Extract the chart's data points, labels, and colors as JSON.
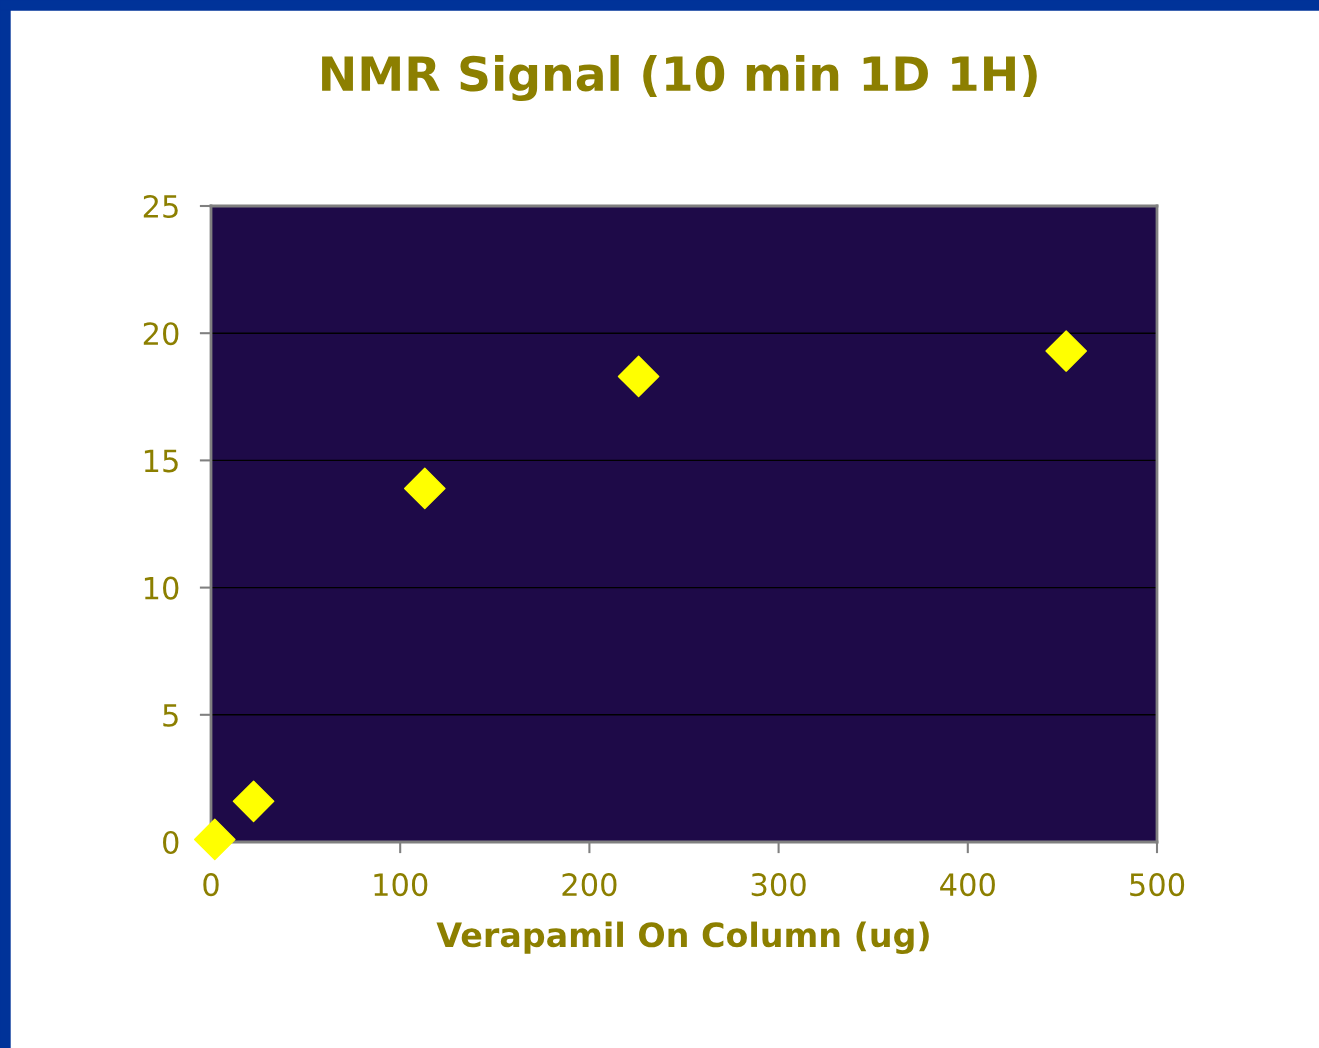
{
  "chart_data": {
    "type": "scatter",
    "title": "NMR Signal (10 min 1D 1H)",
    "xlabel": "Verapamil On Column (ug)",
    "x": [
      2,
      22.5,
      113,
      226,
      452
    ],
    "series": [
      {
        "color": "#ffff00",
        "values": [
          0.1,
          1.6,
          13.9,
          18.3,
          19.3
        ]
      }
    ],
    "marker": "diamond",
    "xlim": [
      0,
      500
    ],
    "xticks": [
      0,
      100,
      200,
      300,
      400,
      500
    ],
    "ylim": [
      0,
      25
    ],
    "yticks": [
      0,
      5,
      10,
      15,
      20,
      25
    ],
    "grid": "y",
    "legend": false
  }
}
